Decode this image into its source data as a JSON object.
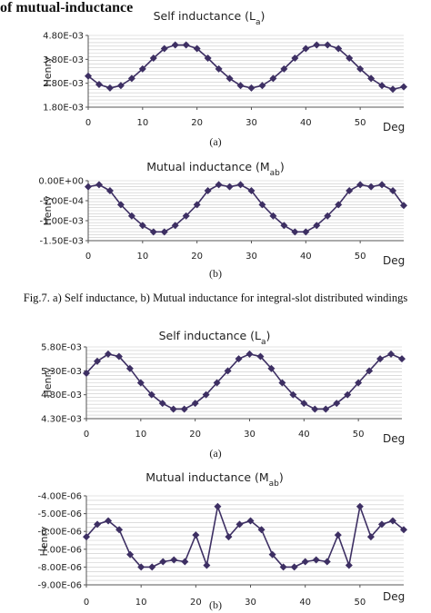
{
  "page": {
    "top_caption": "of mutual-inductance",
    "figure_caption": "Fig.7. a) Self inductance, b) Mutual inductance for integral-slot distributed windings"
  },
  "chart_data": [
    {
      "type": "line",
      "title_text": "Self inductance (L",
      "title_sub": "a",
      "title_close": ")",
      "ylabel": "Henry",
      "xlabel": "Deg",
      "panel": "(a)",
      "ylim": [
        0.0018,
        0.0048
      ],
      "yticks": [
        0.0018,
        0.0028,
        0.0038,
        0.0048
      ],
      "yticklabels": [
        "1.80E-03",
        "2.80E-03",
        "3.80E-03",
        "4.80E-03"
      ],
      "xlim": [
        0,
        58
      ],
      "xticks": [
        0,
        10,
        20,
        30,
        40,
        50
      ],
      "grid": true,
      "color": "#3d2f63",
      "x": [
        0,
        2,
        4,
        6,
        8,
        10,
        12,
        14,
        16,
        18,
        20,
        22,
        24,
        26,
        28,
        30,
        32,
        34,
        36,
        38,
        40,
        42,
        44,
        46,
        48,
        50,
        52,
        54,
        56,
        58
      ],
      "series": [
        {
          "values": [
            0.0031,
            0.00275,
            0.0026,
            0.0027,
            0.003,
            0.0034,
            0.00385,
            0.00425,
            0.0044,
            0.0044,
            0.00425,
            0.00385,
            0.0034,
            0.003,
            0.0027,
            0.0026,
            0.0027,
            0.003,
            0.0034,
            0.00385,
            0.00425,
            0.0044,
            0.0044,
            0.00425,
            0.00385,
            0.0034,
            0.003,
            0.0027,
            0.00255,
            0.00265
          ]
        }
      ]
    },
    {
      "type": "line",
      "title_text": "Mutual inductance (M",
      "title_sub": "ab",
      "title_close": ")",
      "ylabel": "Henry",
      "xlabel": "Deg",
      "panel": "(b)",
      "ylim": [
        -0.0015,
        0.0
      ],
      "yticks": [
        -0.0015,
        -0.001,
        -0.0005,
        0.0
      ],
      "yticklabels": [
        "-1.50E-03",
        "-1.00E-03",
        "-5.00E-04",
        "0.00E+00"
      ],
      "xlim": [
        0,
        58
      ],
      "xticks": [
        0,
        10,
        20,
        30,
        40,
        50
      ],
      "grid": true,
      "color": "#3d2f63",
      "x": [
        0,
        2,
        4,
        6,
        8,
        10,
        12,
        14,
        16,
        18,
        20,
        22,
        24,
        26,
        28,
        30,
        32,
        34,
        36,
        38,
        40,
        42,
        44,
        46,
        48,
        50,
        52,
        54,
        56,
        58
      ],
      "series": [
        {
          "values": [
            -0.00015,
            -0.0001,
            -0.00025,
            -0.0006,
            -0.00088,
            -0.00112,
            -0.00128,
            -0.00128,
            -0.00112,
            -0.00088,
            -0.0006,
            -0.00025,
            -0.0001,
            -0.00015,
            -0.0001,
            -0.00025,
            -0.0006,
            -0.00088,
            -0.00112,
            -0.00128,
            -0.00128,
            -0.00112,
            -0.00088,
            -0.0006,
            -0.00025,
            -0.0001,
            -0.00015,
            -0.0001,
            -0.00025,
            -0.00062
          ]
        }
      ]
    },
    {
      "type": "line",
      "title_text": "Self inductance (L",
      "title_sub": "a",
      "title_close": ")",
      "ylabel": "Henry",
      "xlabel": "Deg",
      "panel": "(a)",
      "ylim": [
        0.0043,
        0.0058
      ],
      "yticks": [
        0.0043,
        0.0048,
        0.0053,
        0.0058
      ],
      "yticklabels": [
        "4.30E-03",
        "4.80E-03",
        "5.30E-03",
        "5.80E-03"
      ],
      "xlim": [
        0,
        58
      ],
      "xticks": [
        0,
        10,
        20,
        30,
        40,
        50
      ],
      "grid": true,
      "color": "#3d2f63",
      "x": [
        0,
        2,
        4,
        6,
        8,
        10,
        12,
        14,
        16,
        18,
        20,
        22,
        24,
        26,
        28,
        30,
        32,
        34,
        36,
        38,
        40,
        42,
        44,
        46,
        48,
        50,
        52,
        54,
        56,
        58
      ],
      "series": [
        {
          "values": [
            0.00525,
            0.0055,
            0.00565,
            0.0056,
            0.00535,
            0.00505,
            0.0048,
            0.00462,
            0.0045,
            0.0045,
            0.00462,
            0.0048,
            0.00505,
            0.0053,
            0.00555,
            0.00565,
            0.0056,
            0.00535,
            0.00505,
            0.0048,
            0.00462,
            0.0045,
            0.0045,
            0.00462,
            0.0048,
            0.00505,
            0.0053,
            0.00555,
            0.00565,
            0.00555
          ]
        }
      ]
    },
    {
      "type": "line",
      "title_text": "Mutual inductance (M",
      "title_sub": "ab",
      "title_close": ")",
      "ylabel": "Henry",
      "xlabel": "Deg",
      "panel": "(b)",
      "ylim": [
        -9e-06,
        -4e-06
      ],
      "yticks": [
        -9e-06,
        -8e-06,
        -7e-06,
        -6e-06,
        -5e-06,
        -4e-06
      ],
      "yticklabels": [
        "-9.00E-06",
        "-8.00E-06",
        "-7.00E-06",
        "-6.00E-06",
        "-5.00E-06",
        "-4.00E-06"
      ],
      "xlim": [
        0,
        58
      ],
      "xticks": [
        0,
        10,
        20,
        30,
        40,
        50
      ],
      "grid": true,
      "color": "#3d2f63",
      "x": [
        0,
        2,
        4,
        6,
        8,
        10,
        12,
        14,
        16,
        18,
        20,
        22,
        24,
        26,
        28,
        30,
        32,
        34,
        36,
        38,
        40,
        42,
        44,
        46,
        48,
        50,
        52,
        54,
        56,
        58
      ],
      "series": [
        {
          "values": [
            -6.3e-06,
            -5.6e-06,
            -5.4e-06,
            -5.9e-06,
            -7.3e-06,
            -8e-06,
            -8e-06,
            -7.7e-06,
            -7.6e-06,
            -7.7e-06,
            -6.2e-06,
            -7.9e-06,
            -4.6e-06,
            -6.3e-06,
            -5.6e-06,
            -5.4e-06,
            -5.9e-06,
            -7.3e-06,
            -8e-06,
            -8e-06,
            -7.7e-06,
            -7.6e-06,
            -7.7e-06,
            -6.2e-06,
            -7.9e-06,
            -4.6e-06,
            -6.3e-06,
            -5.6e-06,
            -5.4e-06,
            -5.9e-06
          ]
        }
      ]
    }
  ]
}
